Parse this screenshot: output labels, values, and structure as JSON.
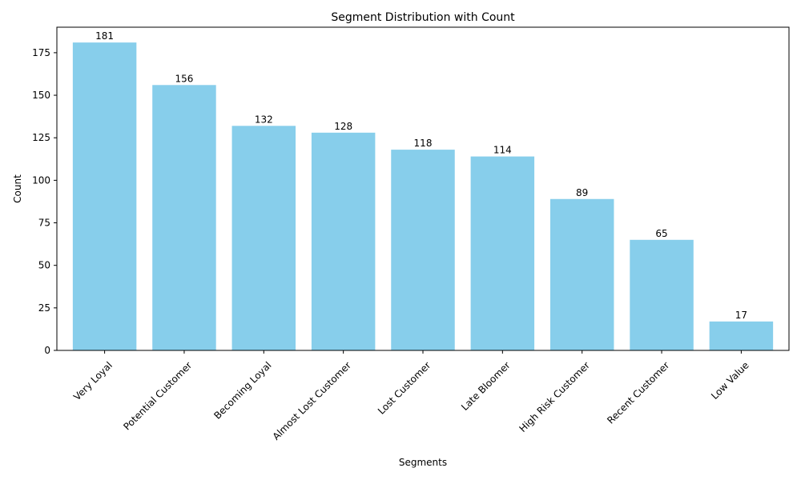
{
  "chart_data": {
    "type": "bar",
    "title": "Segment Distribution with Count",
    "xlabel": "Segments",
    "ylabel": "Count",
    "categories": [
      "Very Loyal",
      "Potential Customer",
      "Becoming Loyal",
      "Almost Lost Customer",
      "Lost Customer",
      "Late Bloomer",
      "High Risk Customer",
      "Recent Customer",
      "Low Value"
    ],
    "values": [
      181,
      156,
      132,
      128,
      118,
      114,
      89,
      65,
      17
    ],
    "ylim": [
      0,
      190
    ],
    "yticks": [
      0,
      25,
      50,
      75,
      100,
      125,
      150,
      175
    ],
    "bar_color": "#87CEEB",
    "grid": false,
    "legend": "none"
  }
}
